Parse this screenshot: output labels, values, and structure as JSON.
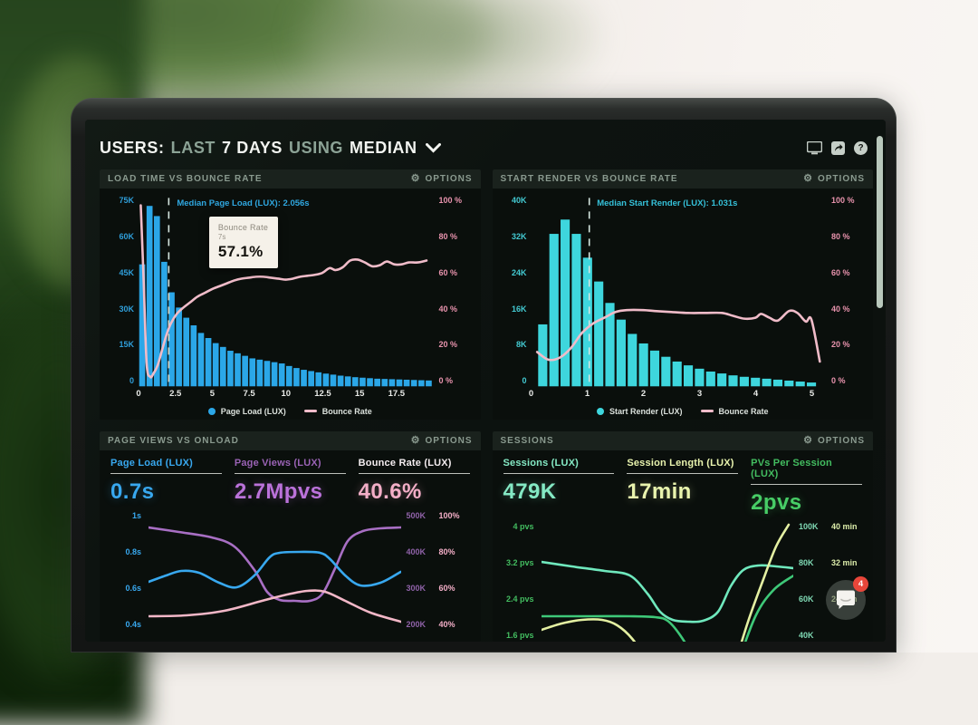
{
  "header": {
    "title_parts": [
      {
        "text": "USERS:",
        "emphasis": "bright"
      },
      {
        "text": "LAST",
        "emphasis": "muted"
      },
      {
        "text": "7 DAYS",
        "emphasis": "bright"
      },
      {
        "text": "USING",
        "emphasis": "muted"
      },
      {
        "text": "MEDIAN",
        "emphasis": "bright"
      }
    ],
    "toolbar_icons": [
      "monitor-icon",
      "share-icon",
      "help-icon"
    ]
  },
  "chat": {
    "badge": "4"
  },
  "panels": {
    "load_time": {
      "title": "LOAD TIME VS BOUNCE RATE",
      "options_label": "OPTIONS",
      "legend": [
        {
          "swatch": "dot",
          "color": "#2ba7e8",
          "label": "Page Load (LUX)"
        },
        {
          "swatch": "line",
          "color": "#f0bcc9",
          "label": "Bounce Rate"
        }
      ]
    },
    "start_render": {
      "title": "START RENDER VS BOUNCE RATE",
      "options_label": "OPTIONS",
      "legend": [
        {
          "swatch": "dot",
          "color": "#3ed6dd",
          "label": "Start Render (LUX)"
        },
        {
          "swatch": "line",
          "color": "#f0bcc9",
          "label": "Bounce Rate"
        }
      ]
    },
    "page_views": {
      "title": "PAGE VIEWS VS ONLOAD",
      "options_label": "OPTIONS",
      "metrics": [
        {
          "label": "Page Load (LUX)",
          "value": "0.7s",
          "label_color": "#38a8ef",
          "value_color": "#38a8ef"
        },
        {
          "label": "Page Views (LUX)",
          "value": "2.7Mpvs",
          "label_color": "#9a63b5",
          "value_color": "#bb72da"
        },
        {
          "label": "Bounce Rate (LUX)",
          "value": "40.6%",
          "label_color": "#f3ecef",
          "value_color": "#f3aec7"
        }
      ]
    },
    "sessions": {
      "title": "SESSIONS",
      "options_label": "OPTIONS",
      "metrics": [
        {
          "label": "Sessions (LUX)",
          "value": "479K",
          "label_color": "#84e9c4",
          "value_color": "#84e9c4"
        },
        {
          "label": "Session Length (LUX)",
          "value": "17min",
          "label_color": "#e9f4ae",
          "value_color": "#e9f4ae"
        },
        {
          "label": "PVs Per Session (LUX)",
          "value": "2pvs",
          "label_color": "#43bd60",
          "value_color": "#47cd66"
        }
      ]
    }
  },
  "chart_data": [
    {
      "type": "bar",
      "panel": "load_time",
      "title": "LOAD TIME VS BOUNCE RATE",
      "x_range": [
        0,
        20
      ],
      "x_ticks": [
        0,
        2.5,
        5,
        7.5,
        10,
        12.5,
        15,
        17.5
      ],
      "x_tick_labels": [
        "0",
        "2.5",
        "5",
        "7.5",
        "10",
        "12.5",
        "15",
        "17.5"
      ],
      "y_left_ticks": [
        "75K",
        "60K",
        "45K",
        "30K",
        "15K",
        "0"
      ],
      "y_left_max_k": 75,
      "y_right_ticks": [
        "100 %",
        "80 %",
        "60 %",
        "40 %",
        "20 %",
        "0 %"
      ],
      "bar_color": "#2ba7e8",
      "bar_start": 0.0,
      "bar_step": 0.5,
      "bars_k": [
        48,
        71,
        67,
        49,
        37,
        31,
        27,
        24,
        21,
        19,
        17,
        15.5,
        14,
        13,
        12,
        11,
        10.5,
        10,
        9.5,
        9,
        8,
        7.2,
        6.5,
        6,
        5.5,
        5,
        4.6,
        4.2,
        3.9,
        3.6,
        3.4,
        3.2,
        3,
        2.9,
        2.8,
        2.7,
        2.6,
        2.5,
        2.4,
        2.3
      ],
      "line_color": "#f0bcc9",
      "line_points_pct": [
        [
          0.15,
          95
        ],
        [
          0.35,
          55
        ],
        [
          0.55,
          12
        ],
        [
          0.8,
          5
        ],
        [
          1.0,
          6.5
        ],
        [
          1.3,
          11
        ],
        [
          1.6,
          19
        ],
        [
          1.9,
          27
        ],
        [
          2.2,
          33
        ],
        [
          2.6,
          38
        ],
        [
          3.0,
          41
        ],
        [
          3.5,
          44
        ],
        [
          4.0,
          47
        ],
        [
          4.5,
          49
        ],
        [
          5.0,
          51
        ],
        [
          5.5,
          52.5
        ],
        [
          6.0,
          54
        ],
        [
          6.5,
          55.5
        ],
        [
          7.0,
          56.5
        ],
        [
          7.5,
          57
        ],
        [
          8.0,
          57.5
        ],
        [
          8.5,
          57.5
        ],
        [
          9.0,
          57
        ],
        [
          9.5,
          56.5
        ],
        [
          10.0,
          56
        ],
        [
          10.5,
          56.5
        ],
        [
          11.0,
          57.5
        ],
        [
          11.5,
          58
        ],
        [
          12.0,
          58.5
        ],
        [
          12.5,
          59.5
        ],
        [
          13.0,
          62
        ],
        [
          13.4,
          61
        ],
        [
          13.9,
          62.5
        ],
        [
          14.4,
          66
        ],
        [
          14.9,
          66.5
        ],
        [
          15.4,
          65
        ],
        [
          15.9,
          63
        ],
        [
          16.4,
          63.5
        ],
        [
          16.9,
          65.5
        ],
        [
          17.4,
          64
        ],
        [
          17.9,
          64
        ],
        [
          18.4,
          65
        ],
        [
          19.0,
          65
        ],
        [
          19.6,
          66
        ]
      ],
      "median": {
        "x": 2.056,
        "label": "Median Page Load (LUX): 2.056s",
        "label_color": "#2fa7e0"
      },
      "tooltip": {
        "series": "Bounce Rate",
        "x": "7s",
        "value": "57.1%"
      }
    },
    {
      "type": "bar",
      "panel": "start_render",
      "title": "START RENDER VS BOUNCE RATE",
      "x_range": [
        0,
        5.25
      ],
      "x_ticks": [
        0,
        1,
        2,
        3,
        4,
        5
      ],
      "x_tick_labels": [
        "0",
        "1",
        "2",
        "3",
        "4",
        "5"
      ],
      "y_left_ticks": [
        "40K",
        "32K",
        "24K",
        "16K",
        "8K",
        "0"
      ],
      "y_left_max_k": 40,
      "y_right_ticks": [
        "100 %",
        "80 %",
        "60 %",
        "40 %",
        "20 %",
        "0 %"
      ],
      "bar_color": "#3ed6dd",
      "bar_start": 0.1,
      "bar_step": 0.2,
      "bars_k": [
        13,
        32,
        35,
        32,
        27,
        22,
        17.5,
        14,
        11,
        9,
        7.5,
        6.2,
        5.2,
        4.4,
        3.7,
        3.1,
        2.7,
        2.3,
        2.0,
        1.8,
        1.6,
        1.4,
        1.2,
        1.0,
        0.8
      ],
      "line_color": "#f0bcc9",
      "line_points_pct": [
        [
          0.1,
          18
        ],
        [
          0.3,
          14
        ],
        [
          0.5,
          15
        ],
        [
          0.7,
          20
        ],
        [
          0.9,
          28
        ],
        [
          1.1,
          33
        ],
        [
          1.3,
          36
        ],
        [
          1.5,
          39
        ],
        [
          1.7,
          40
        ],
        [
          2.0,
          40
        ],
        [
          2.2,
          39.5
        ],
        [
          2.5,
          39
        ],
        [
          2.8,
          38.5
        ],
        [
          3.1,
          38.5
        ],
        [
          3.4,
          38.5
        ],
        [
          3.6,
          37
        ],
        [
          3.8,
          35.5
        ],
        [
          4.0,
          36
        ],
        [
          4.1,
          38
        ],
        [
          4.25,
          36
        ],
        [
          4.4,
          34.5
        ],
        [
          4.6,
          39.5
        ],
        [
          4.75,
          38.5
        ],
        [
          4.9,
          34
        ],
        [
          5.0,
          35
        ],
        [
          5.15,
          13
        ]
      ],
      "median": {
        "x": 1.031,
        "label": "Median Start Render (LUX): 1.031s",
        "label_color": "#35c0d8"
      }
    },
    {
      "type": "line",
      "panel": "page_views",
      "title": "PAGE VIEWS VS ONLOAD",
      "y_left_ticks": [
        "1s",
        "0.8s",
        "0.6s",
        "0.4s"
      ],
      "y_left_color": "#38a8ef",
      "y_right_pairs": [
        [
          "500K",
          "100%"
        ],
        [
          "400K",
          "80%"
        ],
        [
          "300K",
          "60%"
        ],
        [
          "200K",
          "40%"
        ]
      ],
      "y_right_colors": [
        "#8f62a8",
        "#f3aec7"
      ],
      "series": [
        {
          "name": "Page Views (LUX)",
          "color": "#a86fc4",
          "points": [
            [
              0,
              0.095
            ],
            [
              0.12,
              0.12
            ],
            [
              0.25,
              0.15
            ],
            [
              0.34,
              0.2
            ],
            [
              0.42,
              0.33
            ],
            [
              0.47,
              0.45
            ],
            [
              0.52,
              0.495
            ],
            [
              0.58,
              0.5
            ],
            [
              0.64,
              0.5
            ],
            [
              0.69,
              0.46
            ],
            [
              0.74,
              0.32
            ],
            [
              0.79,
              0.17
            ],
            [
              0.85,
              0.115
            ],
            [
              0.92,
              0.1
            ],
            [
              1,
              0.095
            ]
          ]
        },
        {
          "name": "Page Load (LUX)",
          "color": "#38a8ef",
          "points": [
            [
              0,
              0.395
            ],
            [
              0.07,
              0.36
            ],
            [
              0.13,
              0.335
            ],
            [
              0.2,
              0.345
            ],
            [
              0.28,
              0.4
            ],
            [
              0.35,
              0.425
            ],
            [
              0.42,
              0.36
            ],
            [
              0.48,
              0.26
            ],
            [
              0.52,
              0.235
            ],
            [
              0.6,
              0.23
            ],
            [
              0.68,
              0.235
            ],
            [
              0.72,
              0.27
            ],
            [
              0.78,
              0.36
            ],
            [
              0.84,
              0.415
            ],
            [
              0.92,
              0.4
            ],
            [
              1,
              0.34
            ]
          ]
        },
        {
          "name": "Bounce Rate (LUX)",
          "color": "#f2b7c7",
          "points": [
            [
              0,
              0.585
            ],
            [
              0.15,
              0.58
            ],
            [
              0.3,
              0.555
            ],
            [
              0.45,
              0.5
            ],
            [
              0.55,
              0.465
            ],
            [
              0.63,
              0.445
            ],
            [
              0.7,
              0.45
            ],
            [
              0.78,
              0.5
            ],
            [
              0.88,
              0.565
            ],
            [
              1,
              0.615
            ]
          ]
        }
      ]
    },
    {
      "type": "line",
      "panel": "sessions",
      "title": "SESSIONS",
      "y_left_ticks": [
        "4 pvs",
        "3.2 pvs",
        "2.4 pvs",
        "1.6 pvs"
      ],
      "y_left_color": "#43bd60",
      "y_right_pairs": [
        [
          "100K",
          "40 min"
        ],
        [
          "80K",
          "32 min"
        ],
        [
          "60K",
          "24 min"
        ],
        [
          "40K",
          ""
        ]
      ],
      "y_right_colors": [
        "#7fd9b4",
        "#dcedaa"
      ],
      "series": [
        {
          "name": "Sessions (LUX)",
          "color": "#6fe8bd",
          "points": [
            [
              0,
              0.225
            ],
            [
              0.12,
              0.25
            ],
            [
              0.25,
              0.275
            ],
            [
              0.35,
              0.3
            ],
            [
              0.42,
              0.4
            ],
            [
              0.47,
              0.5
            ],
            [
              0.52,
              0.545
            ],
            [
              0.58,
              0.555
            ],
            [
              0.64,
              0.55
            ],
            [
              0.7,
              0.5
            ],
            [
              0.75,
              0.36
            ],
            [
              0.8,
              0.27
            ],
            [
              0.86,
              0.245
            ],
            [
              0.93,
              0.25
            ],
            [
              1,
              0.26
            ]
          ]
        },
        {
          "name": "PVs Per Session (LUX)",
          "color": "#3ec878",
          "points": [
            [
              0,
              0.525
            ],
            [
              0.2,
              0.525
            ],
            [
              0.35,
              0.525
            ],
            [
              0.45,
              0.53
            ],
            [
              0.5,
              0.55
            ],
            [
              0.55,
              0.63
            ],
            [
              0.6,
              0.75
            ],
            [
              0.64,
              0.9
            ],
            [
              0.68,
              1.05
            ],
            [
              0.72,
              1.05
            ],
            [
              0.78,
              0.78
            ],
            [
              0.85,
              0.52
            ],
            [
              0.92,
              0.38
            ],
            [
              1,
              0.3
            ]
          ]
        },
        {
          "name": "Session Length (LUX)",
          "color": "#e4f0a2",
          "points": [
            [
              0,
              0.6
            ],
            [
              0.08,
              0.565
            ],
            [
              0.16,
              0.545
            ],
            [
              0.24,
              0.545
            ],
            [
              0.3,
              0.575
            ],
            [
              0.36,
              0.65
            ],
            [
              0.42,
              0.78
            ],
            [
              0.46,
              0.92
            ],
            [
              0.5,
              1.1
            ],
            [
              0.7,
              1.1
            ],
            [
              0.76,
              0.82
            ],
            [
              0.82,
              0.55
            ],
            [
              0.88,
              0.32
            ],
            [
              0.93,
              0.14
            ],
            [
              0.98,
              0.02
            ]
          ]
        }
      ]
    }
  ]
}
